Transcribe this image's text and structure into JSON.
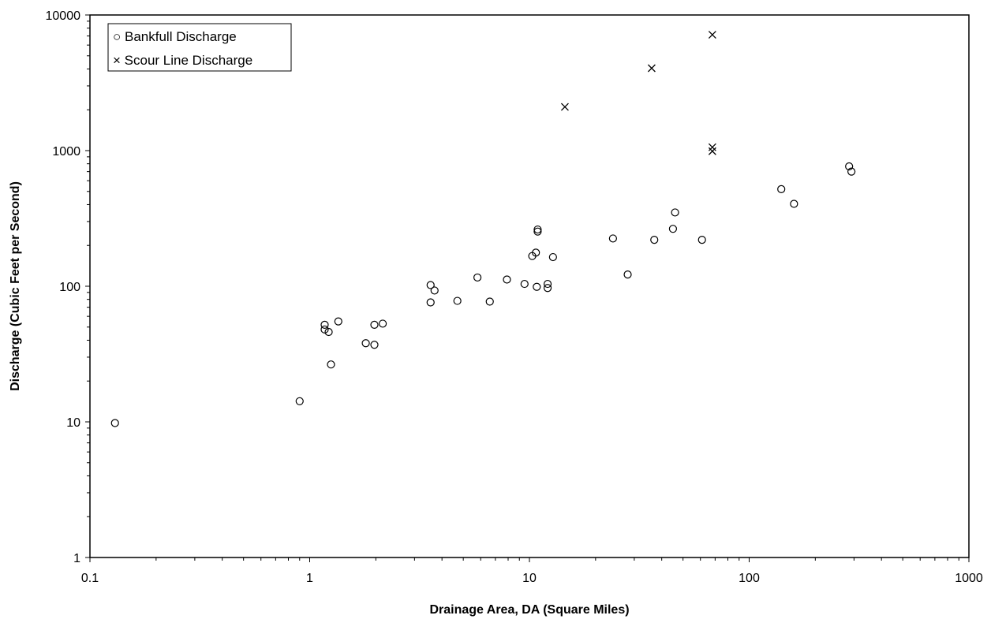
{
  "chart_data": {
    "type": "scatter",
    "title": "",
    "xlabel": "Drainage Area, DA (Square Miles)",
    "ylabel": "Discharge (Cubic Feet per Second)",
    "x_scale": "log",
    "y_scale": "log",
    "xlim": [
      0.1,
      1000
    ],
    "ylim": [
      1,
      10000
    ],
    "x_tick_labels": [
      "0.1",
      "1",
      "10",
      "100",
      "1000"
    ],
    "y_tick_labels": [
      "1",
      "10",
      "100",
      "1000",
      "10000"
    ],
    "grid": false,
    "legend_position": "top-left",
    "series": [
      {
        "name": "Bankfull Discharge",
        "marker": "circle",
        "legend_label": "○ Bankfull Discharge",
        "points": [
          [
            0.13,
            9.8
          ],
          [
            0.9,
            14.2
          ],
          [
            1.17,
            52
          ],
          [
            1.17,
            48
          ],
          [
            1.22,
            46
          ],
          [
            1.25,
            26.5
          ],
          [
            1.35,
            55
          ],
          [
            1.8,
            38
          ],
          [
            1.97,
            52
          ],
          [
            1.97,
            37
          ],
          [
            2.15,
            53
          ],
          [
            3.55,
            102
          ],
          [
            3.55,
            76
          ],
          [
            3.7,
            93
          ],
          [
            4.7,
            78
          ],
          [
            5.8,
            116
          ],
          [
            6.6,
            77
          ],
          [
            7.9,
            112
          ],
          [
            9.5,
            104
          ],
          [
            10.3,
            167
          ],
          [
            10.7,
            177
          ],
          [
            10.8,
            99
          ],
          [
            10.9,
            262
          ],
          [
            10.9,
            253
          ],
          [
            12.1,
            104
          ],
          [
            12.1,
            97
          ],
          [
            12.8,
            164
          ],
          [
            24,
            225
          ],
          [
            28,
            122
          ],
          [
            37,
            220
          ],
          [
            45,
            265
          ],
          [
            46,
            350
          ],
          [
            61,
            220
          ],
          [
            140,
            520
          ],
          [
            160,
            405
          ],
          [
            285,
            765
          ],
          [
            292,
            700
          ]
        ]
      },
      {
        "name": "Scour Line Discharge",
        "marker": "x",
        "legend_label": "× Scour Line Discharge",
        "points": [
          [
            14.5,
            2100
          ],
          [
            36,
            4050
          ],
          [
            68,
            7150
          ],
          [
            68,
            1060
          ],
          [
            68,
            990
          ]
        ]
      }
    ]
  }
}
